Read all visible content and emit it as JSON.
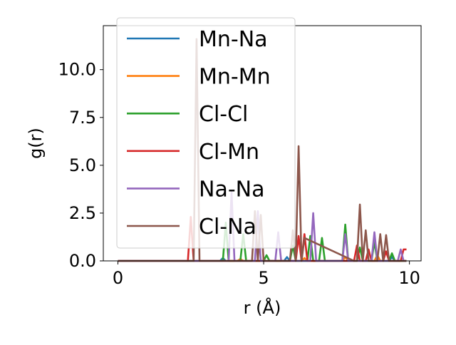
{
  "chart_data": {
    "type": "line",
    "title": "",
    "xlabel": "r (Å)",
    "ylabel": "g(r)",
    "xlim": [
      -0.5,
      10.4
    ],
    "ylim": [
      0,
      12.3
    ],
    "xticks": [
      0,
      5,
      10
    ],
    "xtick_labels": [
      "0",
      "5",
      "10"
    ],
    "yticks": [
      0,
      2.5,
      5,
      7.5,
      10
    ],
    "ytick_labels": [
      "0.0",
      "2.5",
      "5.0",
      "7.5",
      "10.0"
    ],
    "grid": false,
    "legend_position": "upper left",
    "series": [
      {
        "name": "Mn-Na",
        "color": "#1f77b4",
        "x": [
          0,
          3.5,
          3.6,
          3.7,
          3.8,
          5.7,
          5.8,
          5.9,
          9.3,
          9.4,
          9.5,
          9.9
        ],
        "y": [
          0,
          0,
          0.15,
          0,
          0,
          0,
          0.2,
          0,
          0,
          0.2,
          0,
          0
        ]
      },
      {
        "name": "Mn-Mn",
        "color": "#ff7f0e",
        "x": [
          0,
          4.1,
          4.2,
          4.3,
          6.3,
          6.4,
          6.5,
          7.7,
          7.8,
          7.9,
          8.8,
          8.9,
          9.0,
          9.9
        ],
        "y": [
          0,
          0,
          0.1,
          0,
          0,
          0.15,
          0,
          0,
          0.2,
          0,
          0,
          0.3,
          0,
          0
        ]
      },
      {
        "name": "Cl-Cl",
        "color": "#2ca02c",
        "x": [
          0,
          3.6,
          3.7,
          3.8,
          4.2,
          4.3,
          4.4,
          5.0,
          5.1,
          5.2,
          5.9,
          6.0,
          6.1,
          6.5,
          6.6,
          6.7,
          6.9,
          7.0,
          7.1,
          7.7,
          7.8,
          7.9,
          8.2,
          8.3,
          8.4,
          8.7,
          8.8,
          8.9,
          9.3,
          9.4,
          9.5,
          9.9
        ],
        "y": [
          0,
          0,
          2.0,
          0,
          0,
          1.4,
          0,
          0,
          0.3,
          0,
          0,
          0.8,
          0,
          0,
          1.3,
          0,
          0,
          1.2,
          0,
          0,
          1.9,
          0,
          0,
          0.7,
          0,
          0,
          1.0,
          0,
          0,
          0.4,
          0,
          0
        ]
      },
      {
        "name": "Cl-Mn",
        "color": "#d62728",
        "x": [
          0,
          2.4,
          2.5,
          2.6,
          6.1,
          6.2,
          6.3,
          6.4,
          6.5,
          8.1,
          8.2,
          8.3,
          8.5,
          8.6,
          8.7,
          9.1,
          9.2,
          9.3,
          9.7,
          9.8,
          9.9
        ],
        "y": [
          0,
          0,
          2.3,
          0,
          0,
          1.3,
          0,
          1.4,
          0,
          0,
          0.8,
          0,
          0,
          0.6,
          0,
          0,
          0.5,
          0,
          0,
          0.6,
          0.6
        ]
      },
      {
        "name": "Na-Na",
        "color": "#9467bd",
        "x": [
          0,
          3.8,
          3.9,
          4.0,
          4.7,
          4.8,
          4.9,
          5.4,
          5.5,
          5.6,
          6.6,
          6.7,
          6.8,
          7.7,
          7.8,
          7.9,
          8.7,
          8.8,
          8.9,
          9.6,
          9.7,
          9.8,
          9.9
        ],
        "y": [
          0,
          0,
          3.6,
          0,
          0,
          2.6,
          0,
          0,
          1.5,
          0,
          0,
          2.5,
          0,
          0,
          1.4,
          0,
          0,
          1.5,
          0,
          0,
          0.6,
          0,
          0
        ]
      },
      {
        "name": "Cl-Na",
        "color": "#8c564b",
        "x": [
          0,
          2.6,
          2.7,
          2.8,
          4.6,
          4.7,
          4.8,
          4.9,
          5.0,
          5.9,
          6.0,
          6.1,
          6.2,
          6.3,
          6.4,
          8.1,
          8.2,
          8.3,
          8.4,
          8.5,
          8.6,
          8.9,
          9.0,
          9.1,
          9.2,
          9.3,
          9.9
        ],
        "y": [
          0,
          0,
          11.6,
          0,
          0,
          2.6,
          0,
          2.4,
          0,
          0,
          1.6,
          0,
          6.0,
          0,
          1.2,
          0,
          0,
          2.95,
          0,
          1.6,
          0,
          0,
          1.4,
          0,
          1.35,
          0,
          0
        ]
      }
    ]
  }
}
